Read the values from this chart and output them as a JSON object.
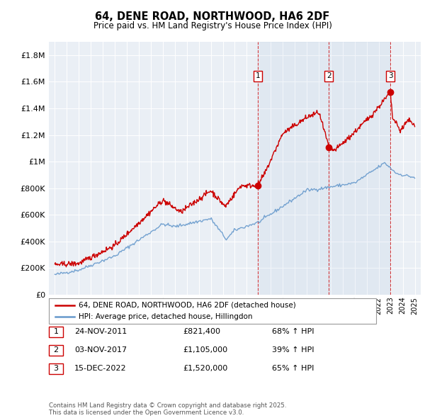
{
  "title": "64, DENE ROAD, NORTHWOOD, HA6 2DF",
  "subtitle": "Price paid vs. HM Land Registry's House Price Index (HPI)",
  "legend_red": "64, DENE ROAD, NORTHWOOD, HA6 2DF (detached house)",
  "legend_blue": "HPI: Average price, detached house, Hillingdon",
  "footer": "Contains HM Land Registry data © Crown copyright and database right 2025.\nThis data is licensed under the Open Government Licence v3.0.",
  "transactions": [
    {
      "num": 1,
      "date": "24-NOV-2011",
      "price": 821400,
      "pct": "68%",
      "dir": "↑",
      "year": 2011.9
    },
    {
      "num": 2,
      "date": "03-NOV-2017",
      "price": 1105000,
      "pct": "39%",
      "dir": "↑",
      "year": 2017.84
    },
    {
      "num": 3,
      "date": "15-DEC-2022",
      "price": 1520000,
      "pct": "65%",
      "dir": "↑",
      "year": 2022.96
    }
  ],
  "red_color": "#cc0000",
  "blue_color": "#6699cc",
  "ylim": [
    0,
    1900000
  ],
  "xlim": [
    1994.5,
    2025.5
  ]
}
